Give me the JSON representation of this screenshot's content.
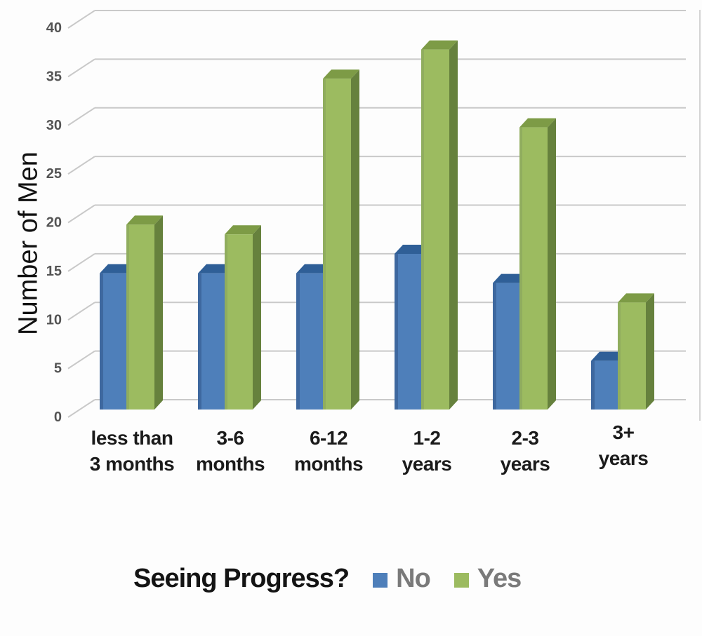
{
  "chart": {
    "y_axis_title": "Number of Men",
    "legend": {
      "title": "Seeing Progress?",
      "items": [
        {
          "label": "No",
          "color": "#4e7fba"
        },
        {
          "label": "Yes",
          "color": "#9cbb60"
        }
      ]
    },
    "colors": {
      "no_front": "#4e7fba",
      "no_top": "#2f5f97",
      "no_edge": "#3e689f",
      "yes_front": "#9cbb60",
      "yes_top": "#7d9b46",
      "yes_side": "#66813d",
      "yes_edge": "#87a25c",
      "gridline": "#c9c9c9",
      "wall": "#d4d4d4",
      "tick_label": "#545454",
      "category_label": "#1b1b1b",
      "background": "#fdfdfd"
    }
  },
  "chart_data": {
    "type": "bar",
    "variant": "pseudo-3d-grouped-column",
    "title": "",
    "xlabel": "",
    "ylabel": "Number of Men",
    "categories": [
      "less than 3 months",
      "3-6 months",
      "6-12 months",
      "1-2 years",
      "2-3 years",
      "3+ years"
    ],
    "category_label_lines": [
      [
        "less than",
        "3 months"
      ],
      [
        "3-6",
        "months"
      ],
      [
        "6-12",
        "months"
      ],
      [
        "1-2",
        "years"
      ],
      [
        "2-3",
        "years"
      ],
      [
        "3+",
        "years"
      ]
    ],
    "series": [
      {
        "name": "No",
        "color": "#4e7fba",
        "values": [
          14,
          14,
          14,
          16,
          13,
          5
        ]
      },
      {
        "name": "Yes",
        "color": "#9cbb60",
        "values": [
          19,
          18,
          34,
          37,
          29,
          11
        ]
      }
    ],
    "ylim": [
      0,
      40
    ],
    "yticks": [
      0,
      5,
      10,
      15,
      20,
      25,
      30,
      35,
      40
    ],
    "grid": true,
    "legend_position": "bottom",
    "legend_title": "Seeing Progress?"
  }
}
